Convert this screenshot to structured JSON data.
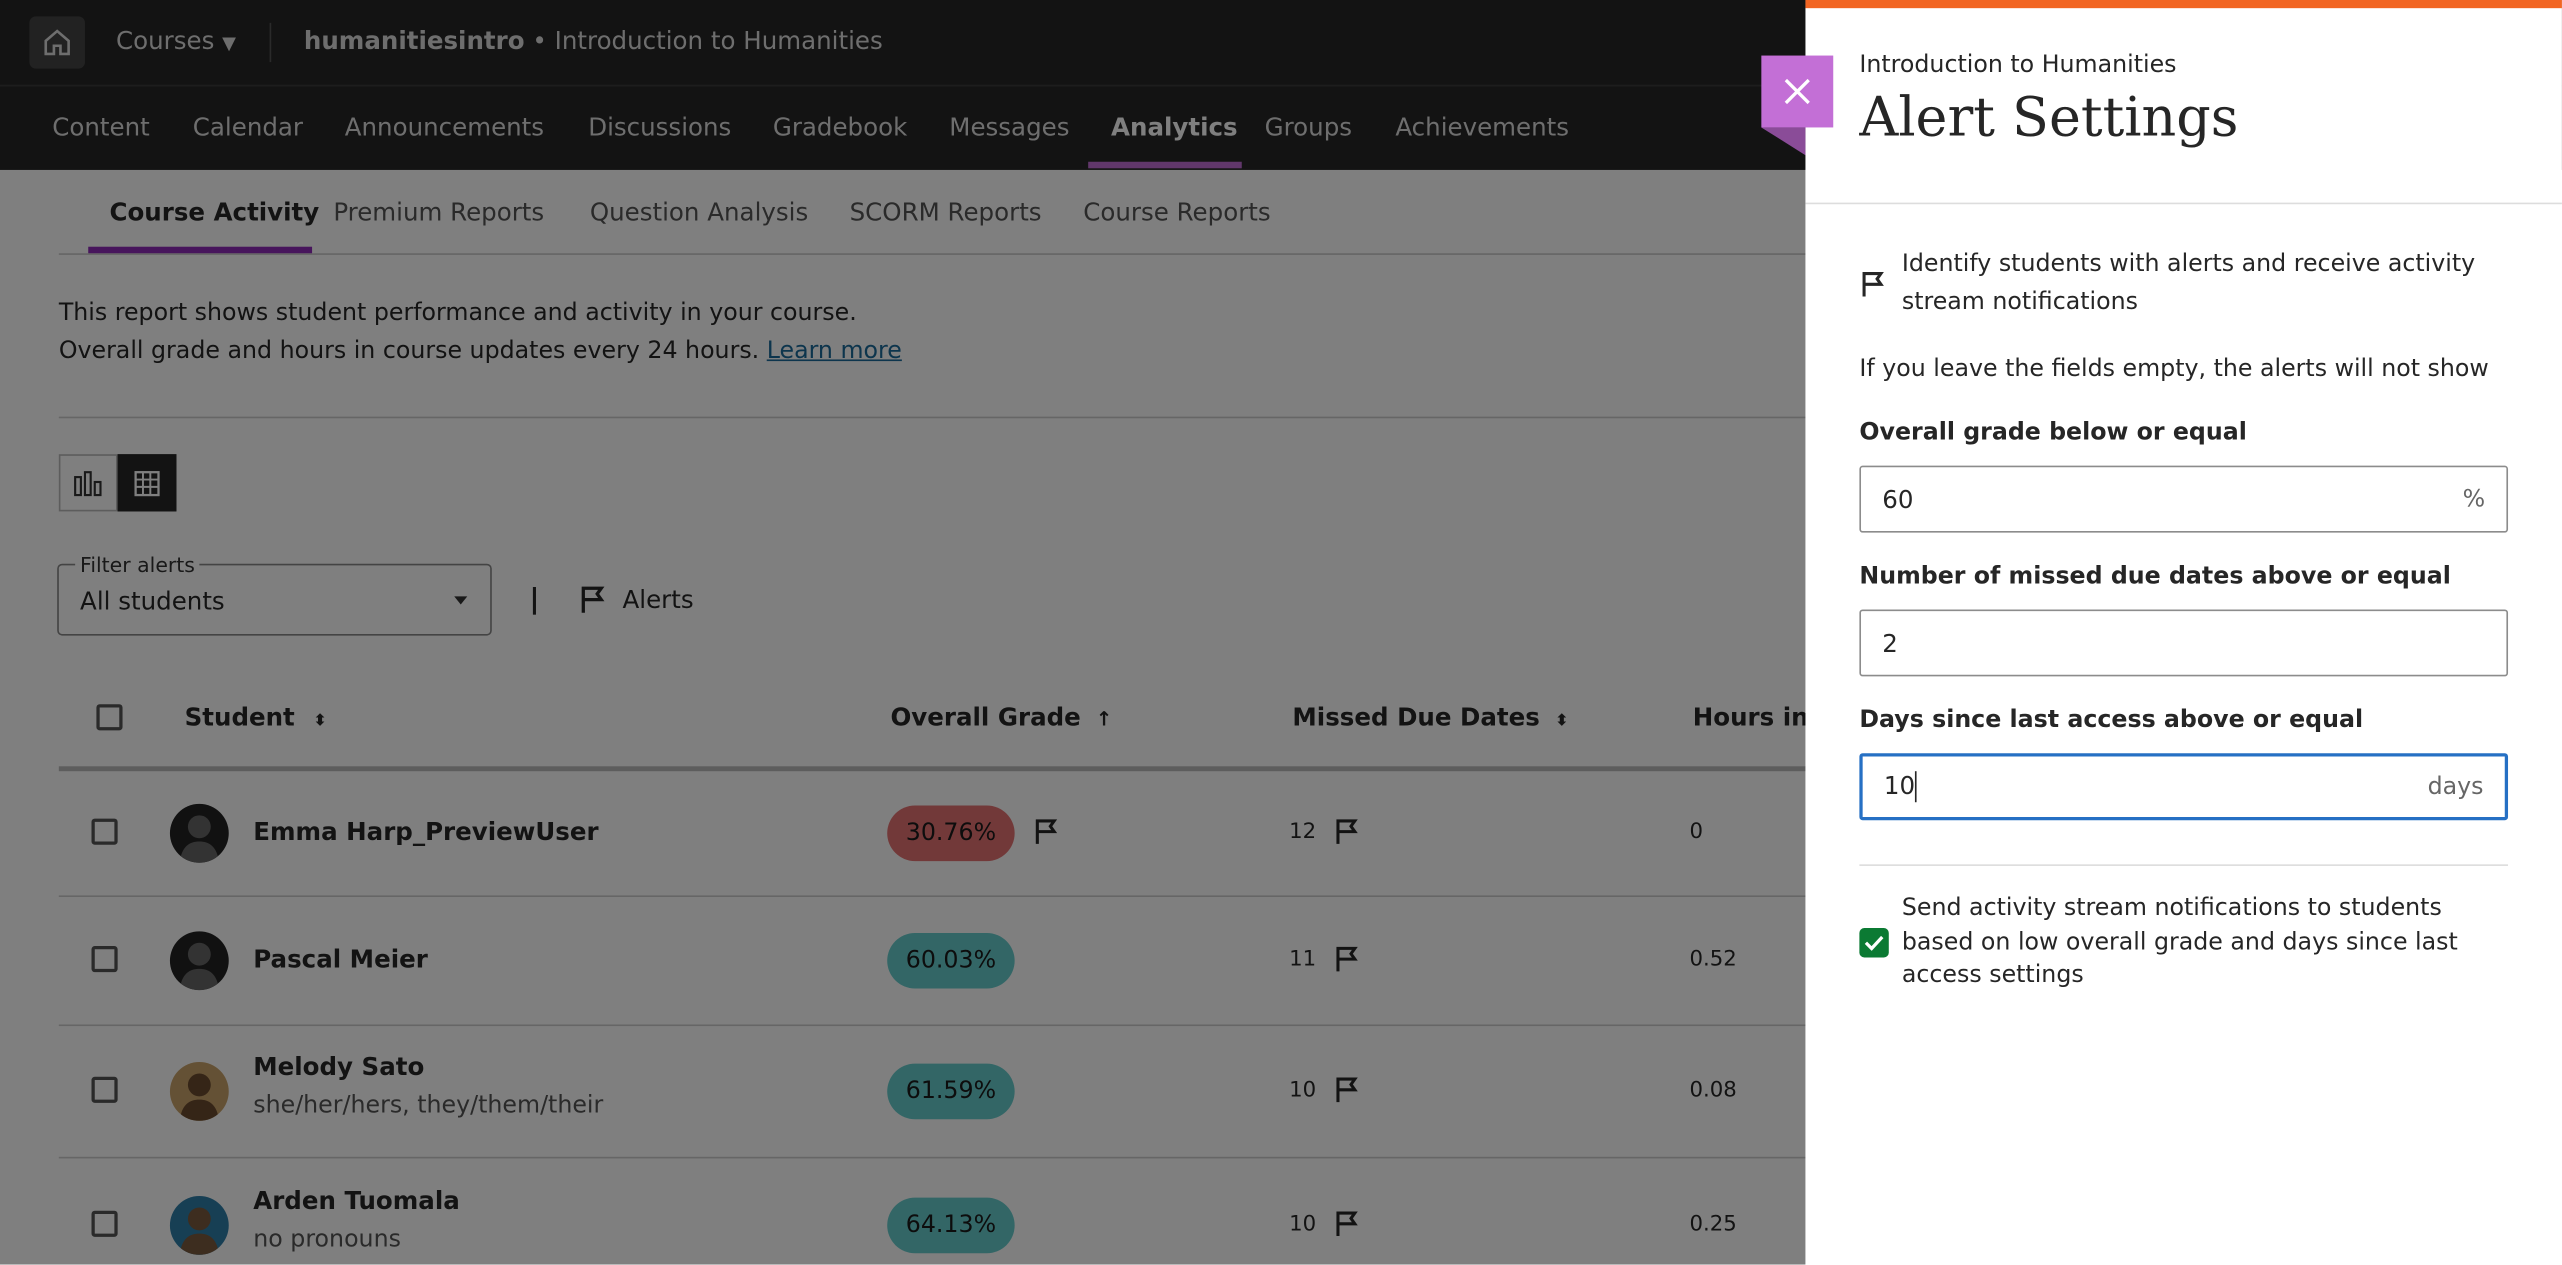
{
  "topbar": {
    "home_icon": "home-icon",
    "courses_label": "Courses",
    "course_code": "humanitiesintro",
    "separator": "•",
    "course_name": "Introduction to Humanities"
  },
  "nav": {
    "items": [
      "Content",
      "Calendar",
      "Announcements",
      "Discussions",
      "Gradebook",
      "Messages",
      "Analytics",
      "Groups",
      "Achievements"
    ],
    "active": "Analytics"
  },
  "subtabs": {
    "items": [
      "Course Activity",
      "Premium Reports",
      "Question Analysis",
      "SCORM Reports",
      "Course Reports"
    ],
    "active": "Course Activity"
  },
  "description": {
    "line1": "This report shows student performance and activity in your course.",
    "line2": "Overall grade and hours in course updates every 24 hours.",
    "learn_more": "Learn more"
  },
  "view_toggle": {
    "chart_icon": "bar-chart-icon",
    "table_icon": "table-icon",
    "active": "table"
  },
  "filter": {
    "label": "Filter alerts",
    "value": "All students",
    "divider": "|",
    "alerts_label": "Alerts"
  },
  "table": {
    "columns": [
      "Student",
      "Overall Grade",
      "Missed Due Dates",
      "Hours in"
    ],
    "rows": [
      {
        "name": "Emma Harp_PreviewUser",
        "pronouns": "",
        "grade": "30.76%",
        "grade_alert": true,
        "missed": "12",
        "hours": "0"
      },
      {
        "name": "Pascal Meier",
        "pronouns": "",
        "grade": "60.03%",
        "grade_alert": false,
        "missed": "11",
        "hours": "0.52"
      },
      {
        "name": "Melody Sato",
        "pronouns": "she/her/hers, they/them/their",
        "grade": "61.59%",
        "grade_alert": false,
        "missed": "10",
        "hours": "0.08"
      },
      {
        "name": "Arden Tuomala",
        "pronouns": "no pronouns",
        "grade": "64.13%",
        "grade_alert": false,
        "missed": "10",
        "hours": "0.25"
      }
    ]
  },
  "colors": {
    "grade_alert": "#e57373",
    "grade_ok": "#66cccc",
    "accent": "#c36fd6",
    "panel_top": "#f26522",
    "checkbox": "#0b7a33",
    "focus": "#2670c4"
  },
  "panel": {
    "subtitle": "Introduction to Humanities",
    "title": "Alert Settings",
    "intro": "Identify students with alerts and receive activity stream notifications",
    "note": "If you leave the fields empty, the alerts will not show",
    "grade_label": "Overall grade below or equal",
    "grade_value": "60",
    "grade_unit": "%",
    "missed_label": "Number of missed due dates above or equal",
    "missed_value": "2",
    "days_label": "Days since last access above or equal",
    "days_value": "10",
    "days_unit": "days",
    "notify_label": "Send activity stream notifications to students based on low overall grade and days since last access settings",
    "notify_checked": true
  }
}
